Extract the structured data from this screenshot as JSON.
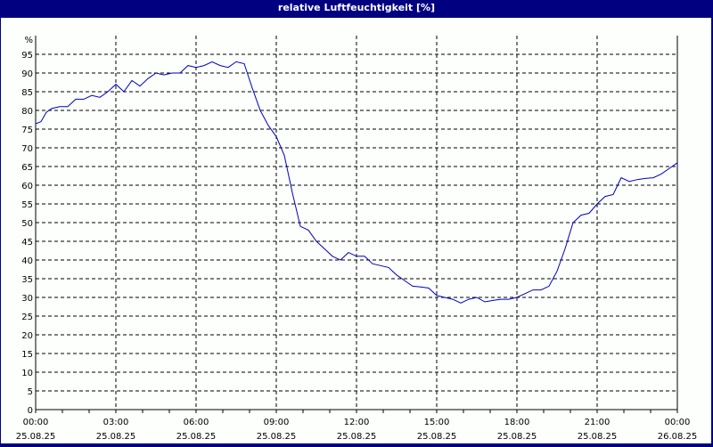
{
  "window": {
    "title": "relative Luftfeuchtigkeit [%]"
  },
  "colors": {
    "frame": "#000080",
    "background": "#fcfffc",
    "line": "#0000c0",
    "grid": "#000000"
  },
  "chart_data": {
    "type": "line",
    "title": "relative Luftfeuchtigkeit [%]",
    "xlabel": "",
    "ylabel": "%",
    "ylim": [
      0,
      100
    ],
    "y_ticks": [
      0,
      5,
      10,
      15,
      20,
      25,
      30,
      35,
      40,
      45,
      50,
      55,
      60,
      65,
      70,
      75,
      80,
      85,
      90,
      95
    ],
    "x_ticks": [
      {
        "time": "00:00",
        "date": "25.08.25"
      },
      {
        "time": "03:00",
        "date": "25.08.25"
      },
      {
        "time": "06:00",
        "date": "25.08.25"
      },
      {
        "time": "09:00",
        "date": "25.08.25"
      },
      {
        "time": "12:00",
        "date": "25.08.25"
      },
      {
        "time": "15:00",
        "date": "25.08.25"
      },
      {
        "time": "18:00",
        "date": "25.08.25"
      },
      {
        "time": "21:00",
        "date": "25.08.25"
      },
      {
        "time": "00:00",
        "date": "26.08.25"
      }
    ],
    "grid": true,
    "legend": null,
    "series": [
      {
        "name": "relative Luftfeuchtigkeit",
        "x_hours": [
          0,
          0.2,
          0.4,
          0.6,
          0.9,
          1.2,
          1.5,
          1.8,
          2.1,
          2.4,
          2.7,
          3.0,
          3.3,
          3.6,
          3.9,
          4.2,
          4.5,
          4.8,
          5.1,
          5.4,
          5.7,
          6.0,
          6.3,
          6.6,
          6.9,
          7.2,
          7.5,
          7.8,
          8.1,
          8.4,
          8.7,
          9.0,
          9.3,
          9.6,
          9.9,
          10.2,
          10.5,
          10.8,
          11.1,
          11.4,
          11.7,
          12.0,
          12.3,
          12.6,
          12.9,
          13.2,
          13.5,
          13.8,
          14.1,
          14.4,
          14.7,
          15.0,
          15.3,
          15.6,
          15.9,
          16.2,
          16.5,
          16.8,
          17.1,
          17.4,
          17.7,
          18.0,
          18.3,
          18.6,
          18.9,
          19.2,
          19.5,
          19.8,
          20.1,
          20.4,
          20.7,
          21.0,
          21.3,
          21.6,
          21.9,
          22.2,
          22.5,
          22.8,
          23.1,
          23.4,
          23.7,
          24.0
        ],
        "values": [
          76.4,
          77,
          79.5,
          80.5,
          81,
          81,
          83,
          83,
          84,
          83.5,
          85,
          87,
          85,
          88,
          86.5,
          88.5,
          90,
          89.5,
          90,
          90,
          92,
          91.5,
          92,
          93,
          92,
          91.5,
          93,
          92.5,
          86,
          80,
          76,
          73,
          68,
          58,
          49,
          48,
          45,
          43,
          41,
          40,
          42,
          41,
          41,
          39,
          38.5,
          38,
          36,
          34.5,
          33,
          32.8,
          32.5,
          30.5,
          30,
          29.5,
          28.5,
          29.5,
          30,
          28.8,
          29.2,
          29.5,
          29.5,
          30,
          31,
          32,
          32,
          33,
          37,
          43,
          50,
          52,
          52.5,
          55,
          57,
          57.5,
          62,
          61,
          61.5,
          61.8,
          62,
          63,
          64.5,
          66
        ]
      }
    ]
  }
}
